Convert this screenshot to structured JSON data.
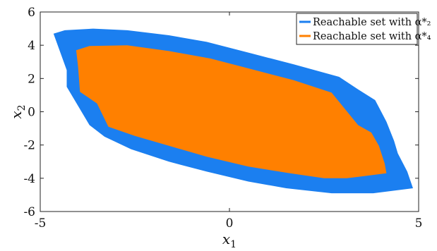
{
  "chart_data": {
    "type": "area",
    "title": "",
    "xlabel": "x_1",
    "ylabel": "x_2",
    "xlim": [
      -5,
      5
    ],
    "ylim": [
      -6,
      6
    ],
    "xticks": [
      -5,
      0,
      5
    ],
    "yticks": [
      -6,
      -4,
      -2,
      0,
      2,
      4,
      6
    ],
    "x_tick_labels": [
      "-5",
      "0",
      "5"
    ],
    "y_tick_labels": [
      "-6",
      "-4",
      "-2",
      "0",
      "2",
      "4",
      "6"
    ],
    "grid": false,
    "legend": {
      "position": "top-right",
      "entries": [
        "Reachable set with α*₂",
        "Reachable set with α*₄"
      ]
    },
    "series": [
      {
        "name": "Reachable set with α*₂",
        "color": "#1b7ff0",
        "points": [
          [
            -4.65,
            4.7
          ],
          [
            -4.35,
            4.9
          ],
          [
            -3.6,
            5.0
          ],
          [
            -2.7,
            4.9
          ],
          [
            -1.6,
            4.6
          ],
          [
            -0.6,
            4.2
          ],
          [
            0.6,
            3.5
          ],
          [
            1.7,
            2.85
          ],
          [
            2.9,
            2.1
          ],
          [
            3.4,
            1.35
          ],
          [
            3.85,
            0.7
          ],
          [
            4.15,
            -0.6
          ],
          [
            4.35,
            -1.75
          ],
          [
            4.45,
            -2.5
          ],
          [
            4.7,
            -3.6
          ],
          [
            4.85,
            -4.6
          ],
          [
            3.8,
            -4.9
          ],
          [
            2.7,
            -4.9
          ],
          [
            1.5,
            -4.6
          ],
          [
            0.5,
            -4.2
          ],
          [
            -0.6,
            -3.6
          ],
          [
            -1.6,
            -3.0
          ],
          [
            -2.6,
            -2.25
          ],
          [
            -3.3,
            -1.5
          ],
          [
            -3.7,
            -0.8
          ],
          [
            -4.3,
            1.5
          ],
          [
            -4.3,
            2.5
          ]
        ]
      },
      {
        "name": "Reachable set with α*₄",
        "color": "#ff8000",
        "points": [
          [
            -4.05,
            3.7
          ],
          [
            -3.7,
            3.95
          ],
          [
            -2.7,
            4.0
          ],
          [
            -1.6,
            3.65
          ],
          [
            -0.5,
            3.2
          ],
          [
            0.6,
            2.55
          ],
          [
            1.7,
            1.9
          ],
          [
            2.7,
            1.15
          ],
          [
            3.4,
            -0.8
          ],
          [
            3.75,
            -1.25
          ],
          [
            3.95,
            -2.05
          ],
          [
            4.1,
            -3.1
          ],
          [
            4.15,
            -3.7
          ],
          [
            3.1,
            -4.0
          ],
          [
            2.5,
            -4.0
          ],
          [
            1.6,
            -3.7
          ],
          [
            0.5,
            -3.3
          ],
          [
            -0.6,
            -2.7
          ],
          [
            -1.6,
            -2.05
          ],
          [
            -2.5,
            -1.45
          ],
          [
            -3.2,
            -0.9
          ],
          [
            -3.5,
            0.5
          ],
          [
            -3.95,
            1.2
          ],
          [
            -4.0,
            2.7
          ]
        ]
      }
    ]
  }
}
